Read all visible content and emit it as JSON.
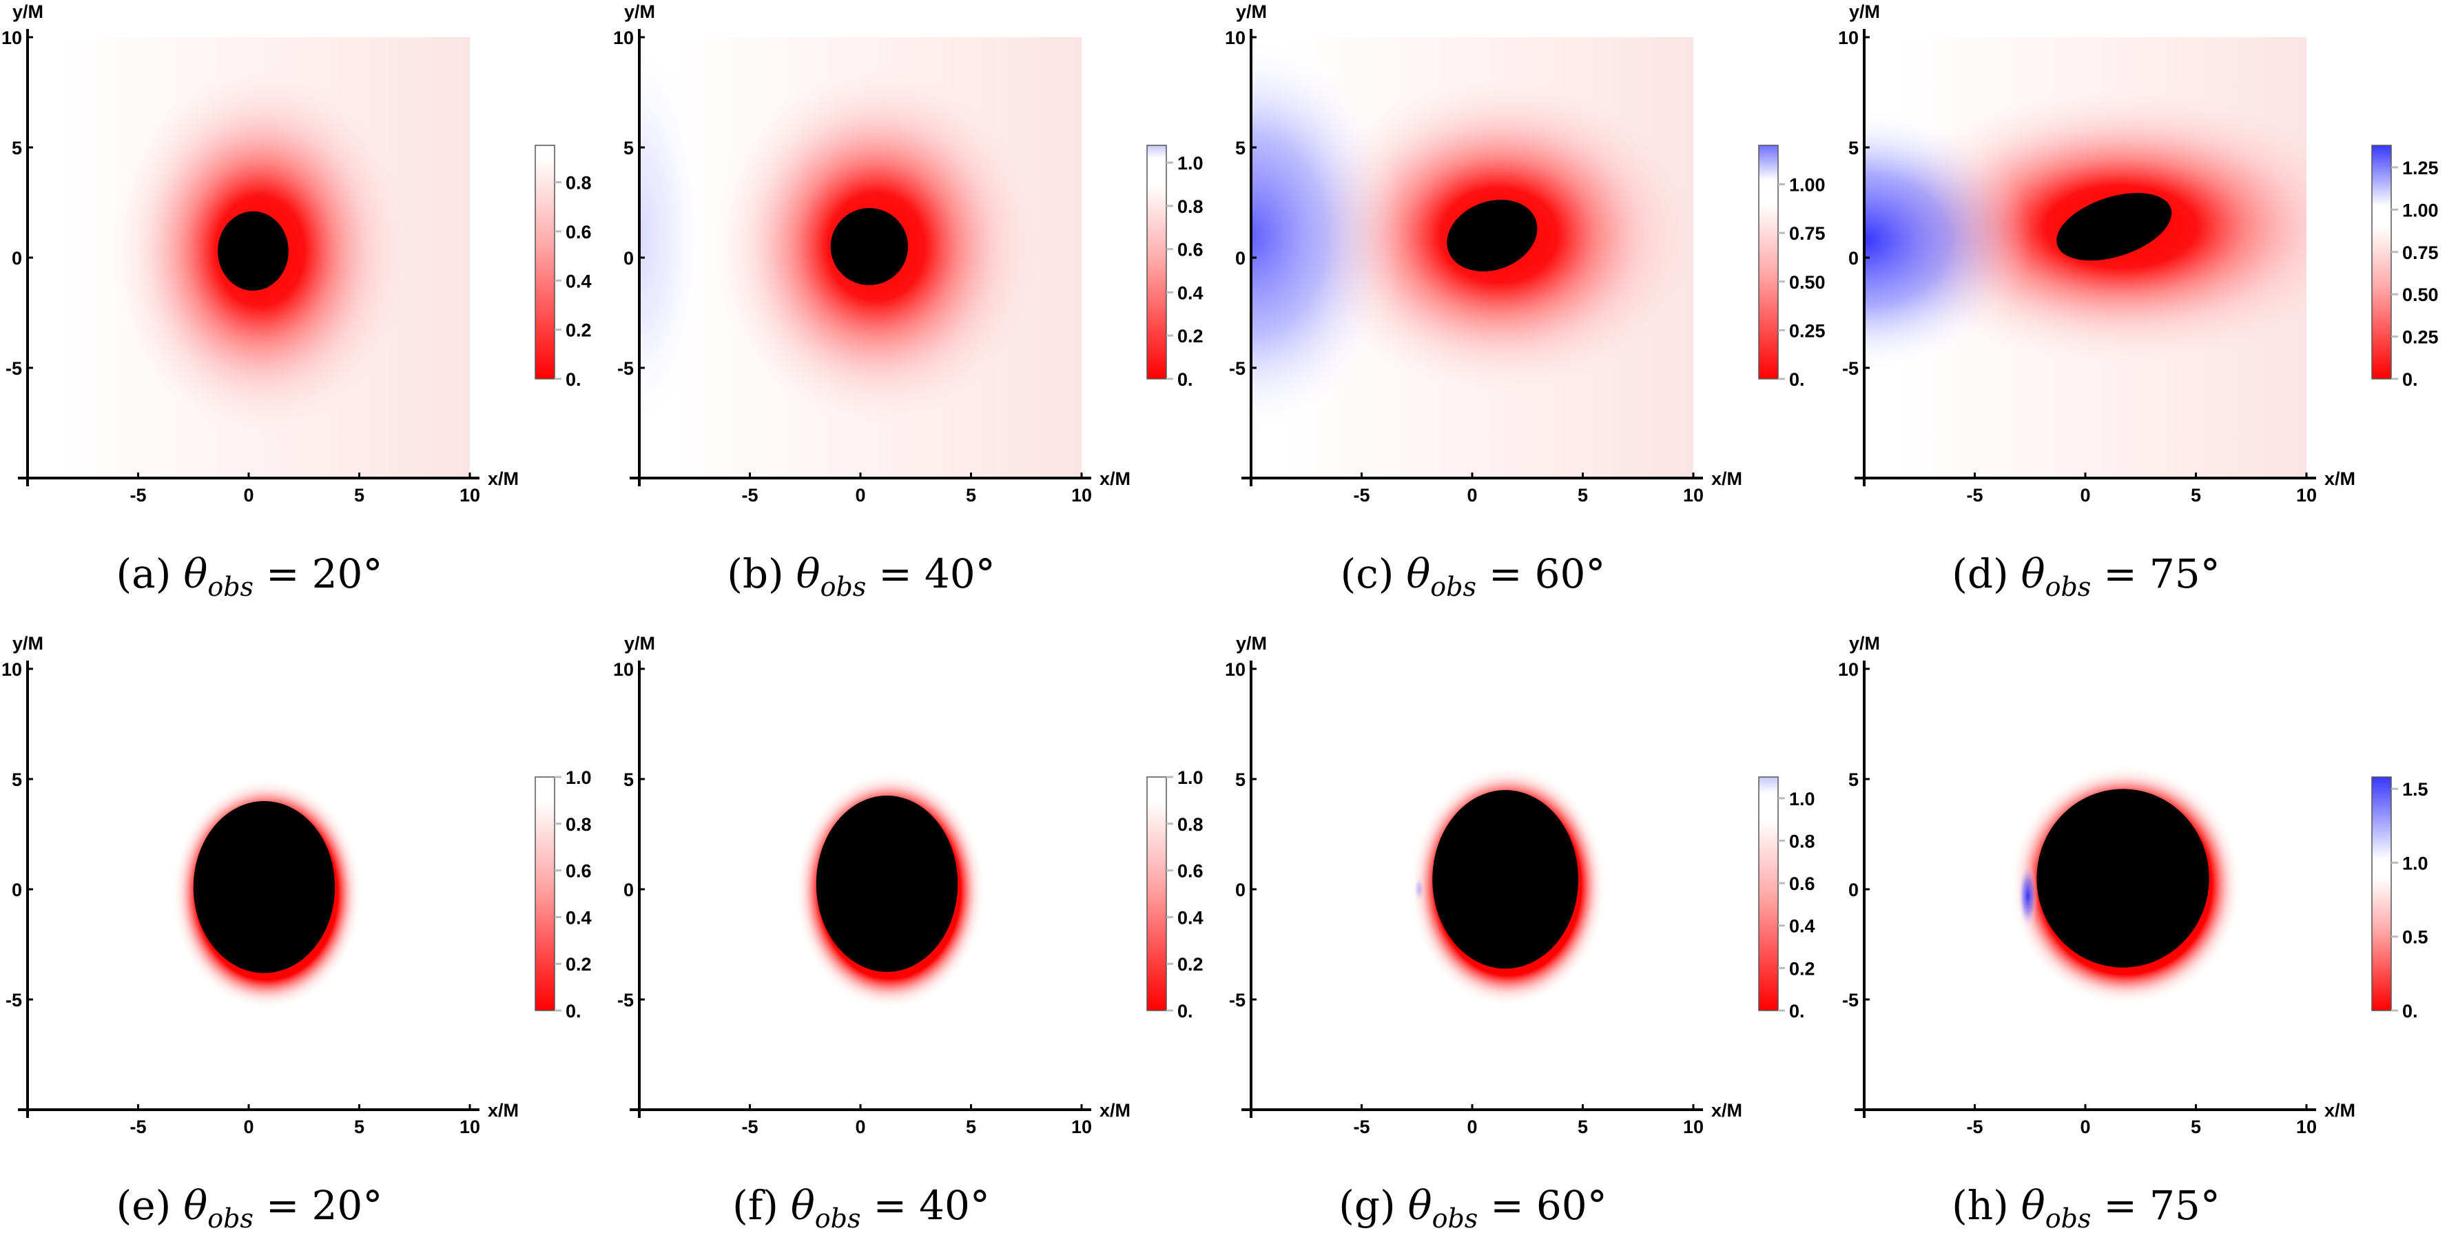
{
  "chart_data": {
    "type": "heatmap",
    "xlabel": "x/M",
    "ylabel": "y/M",
    "xlim": [
      -10,
      10
    ],
    "ylim": [
      -10,
      10
    ],
    "xticks": [
      "-5",
      "0",
      "5",
      "10"
    ],
    "yticks": [
      "10",
      "5",
      "0",
      "-5"
    ],
    "colormap": {
      "low": "#ff0000",
      "mid": "#ffffff",
      "high": "#3333ff"
    },
    "caption_symbol": "θ",
    "caption_sub": "obs",
    "caption_eq": "=",
    "panels": [
      {
        "label": "(a)",
        "angle": "20°",
        "cb_max": 0.95,
        "cb_ticks": [
          "0.",
          "0.2",
          "0.4",
          "0.6",
          "0.8"
        ],
        "cb_vals": [
          0,
          0.2,
          0.4,
          0.6,
          0.8
        ],
        "shadow": {
          "cx": 0.2,
          "cy": 0.3,
          "rx": 1.6,
          "ry": 1.8,
          "rot": 0
        },
        "style": "wide",
        "blue": null
      },
      {
        "label": "(b)",
        "angle": "40°",
        "cb_max": 1.08,
        "cb_ticks": [
          "0.",
          "0.2",
          "0.4",
          "0.6",
          "0.8",
          "1.0"
        ],
        "cb_vals": [
          0,
          0.2,
          0.4,
          0.6,
          0.8,
          1.0
        ],
        "shadow": {
          "cx": 0.4,
          "cy": 0.5,
          "rx": 1.75,
          "ry": 1.75,
          "rot": -15
        },
        "style": "wide",
        "blue": {
          "cx": -10,
          "cy": 1,
          "rx": 3,
          "ry": 9,
          "op": 0.18
        }
      },
      {
        "label": "(c)",
        "angle": "60°",
        "cb_max": 1.2,
        "cb_ticks": [
          "0.",
          "0.25",
          "0.50",
          "0.75",
          "1.00"
        ],
        "cb_vals": [
          0,
          0.25,
          0.5,
          0.75,
          1.0
        ],
        "shadow": {
          "cx": 0.9,
          "cy": 1.0,
          "rx": 2.1,
          "ry": 1.55,
          "rot": -20
        },
        "style": "wide",
        "blue": {
          "cx": -10,
          "cy": 1,
          "rx": 6.8,
          "ry": 9,
          "op": 0.75
        }
      },
      {
        "label": "(d)",
        "angle": "75°",
        "cb_max": 1.38,
        "cb_ticks": [
          "0.",
          "0.25",
          "0.50",
          "0.75",
          "1.00",
          "1.25"
        ],
        "cb_vals": [
          0,
          0.25,
          0.5,
          0.75,
          1.0,
          1.25
        ],
        "shadow": {
          "cx": 1.3,
          "cy": 1.4,
          "rx": 2.7,
          "ry": 1.35,
          "rot": -18
        },
        "style": "wide",
        "blue": {
          "cx": -10,
          "cy": 0.8,
          "rx": 7.6,
          "ry": 6,
          "op": 0.95
        }
      },
      {
        "label": "(e)",
        "angle": "20°",
        "cb_max": 1.0,
        "cb_ticks": [
          "0.",
          "0.2",
          "0.4",
          "0.6",
          "0.8",
          "1.0"
        ],
        "cb_vals": [
          0,
          0.2,
          0.4,
          0.6,
          0.8,
          1.0
        ],
        "shadow": {
          "cx": 0.7,
          "cy": 0.1,
          "rx": 3.2,
          "ry": 3.9,
          "rot": 0
        },
        "style": "ring",
        "blue": null
      },
      {
        "label": "(f)",
        "angle": "40°",
        "cb_max": 1.0,
        "cb_ticks": [
          "0.",
          "0.2",
          "0.4",
          "0.6",
          "0.8",
          "1.0"
        ],
        "cb_vals": [
          0,
          0.2,
          0.4,
          0.6,
          0.8,
          1.0
        ],
        "shadow": {
          "cx": 1.2,
          "cy": 0.25,
          "rx": 3.2,
          "ry": 4.0,
          "rot": 0
        },
        "style": "ring",
        "blue": null
      },
      {
        "label": "(g)",
        "angle": "60°",
        "cb_max": 1.1,
        "cb_ticks": [
          "0.",
          "0.2",
          "0.4",
          "0.6",
          "0.8",
          "1.0"
        ],
        "cb_vals": [
          0,
          0.2,
          0.4,
          0.6,
          0.8,
          1.0
        ],
        "shadow": {
          "cx": 1.5,
          "cy": 0.45,
          "rx": 3.3,
          "ry": 4.05,
          "rot": 0
        },
        "style": "ring",
        "blue": {
          "cx": -2.4,
          "cy": 0,
          "rx": 0.25,
          "ry": 0.6,
          "op": 0.3
        }
      },
      {
        "label": "(h)",
        "angle": "75°",
        "cb_max": 1.58,
        "cb_ticks": [
          "0.",
          "0.5",
          "1.0",
          "1.5"
        ],
        "cb_vals": [
          0,
          0.5,
          1.0,
          1.5
        ],
        "shadow": {
          "cx": 1.7,
          "cy": 0.5,
          "rx": 3.9,
          "ry": 4.05,
          "rot": 0
        },
        "style": "ring",
        "blue": {
          "cx": -2.6,
          "cy": -0.3,
          "rx": 0.45,
          "ry": 1.5,
          "op": 0.95
        }
      }
    ]
  }
}
